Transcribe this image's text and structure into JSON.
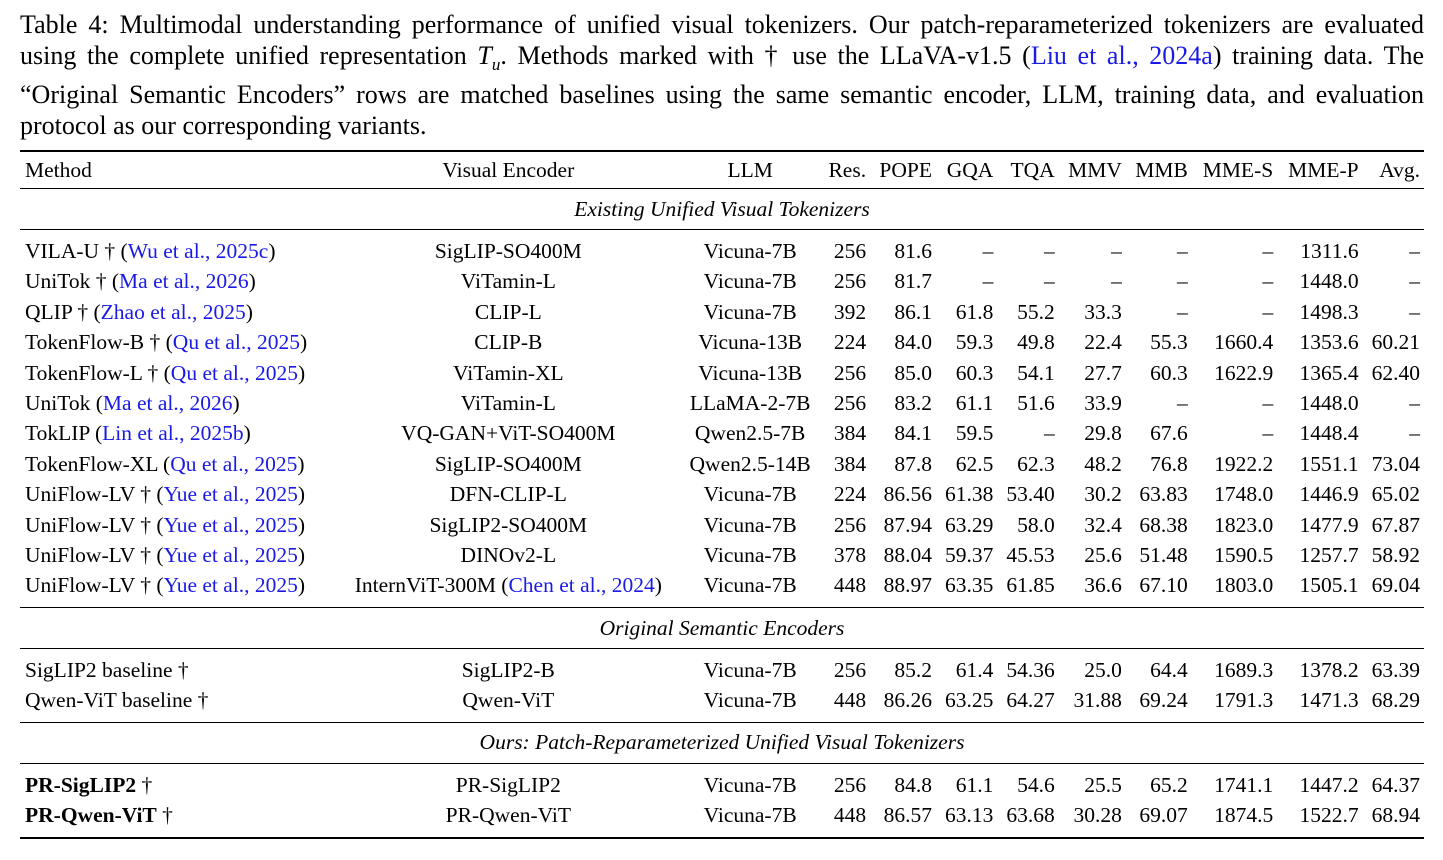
{
  "caption": {
    "prefix": "Table 4: Multimodal understanding performance of unified visual tokenizers. Our patch-reparameterized tokenizers are evaluated using the complete unified representation ",
    "math_base": "T",
    "math_sub": "u",
    "middle": ". Methods marked with † use the LLaVA-v1.5 (",
    "cite_text": "Liu et al., 2024a",
    "suffix": ") training data. The “Original Semantic Encoders” rows are matched baselines using the same semantic encoder, LLM, training data, and evaluation protocol as our corresponding variants."
  },
  "table": {
    "headers": [
      "Method",
      "Visual Encoder",
      "LLM",
      "Res.",
      "POPE",
      "GQA",
      "TQA",
      "MMV",
      "MMB",
      "MME-S",
      "MME-P",
      "Avg."
    ],
    "sections": [
      {
        "title": "Existing Unified Visual Tokenizers",
        "rows": [
          {
            "method": "VILA-U † (",
            "cite": "Wu et al., 2025c",
            "close": ")",
            "encoder": "SigLIP-SO400M",
            "llm": "Vicuna-7B",
            "vals": [
              "256",
              "81.6",
              "–",
              "–",
              "–",
              "–",
              "–",
              "1311.6",
              "–"
            ]
          },
          {
            "method": "UniTok † (",
            "cite": "Ma et al., 2026",
            "close": ")",
            "encoder": "ViTamin-L",
            "llm": "Vicuna-7B",
            "vals": [
              "256",
              "81.7",
              "–",
              "–",
              "–",
              "–",
              "–",
              "1448.0",
              "–"
            ]
          },
          {
            "method": "QLIP † (",
            "cite": "Zhao et al., 2025",
            "close": ")",
            "encoder": "CLIP-L",
            "llm": "Vicuna-7B",
            "vals": [
              "392",
              "86.1",
              "61.8",
              "55.2",
              "33.3",
              "–",
              "–",
              "1498.3",
              "–"
            ]
          },
          {
            "method": "TokenFlow-B † (",
            "cite": "Qu et al., 2025",
            "close": ")",
            "encoder": "CLIP-B",
            "llm": "Vicuna-13B",
            "vals": [
              "224",
              "84.0",
              "59.3",
              "49.8",
              "22.4",
              "55.3",
              "1660.4",
              "1353.6",
              "60.21"
            ]
          },
          {
            "method": "TokenFlow-L † (",
            "cite": "Qu et al., 2025",
            "close": ")",
            "encoder": "ViTamin-XL",
            "llm": "Vicuna-13B",
            "vals": [
              "256",
              "85.0",
              "60.3",
              "54.1",
              "27.7",
              "60.3",
              "1622.9",
              "1365.4",
              "62.40"
            ]
          },
          {
            "method": "UniTok (",
            "cite": "Ma et al., 2026",
            "close": ")",
            "encoder": "ViTamin-L",
            "llm": "LLaMA-2-7B",
            "vals": [
              "256",
              "83.2",
              "61.1",
              "51.6",
              "33.9",
              "–",
              "–",
              "1448.0",
              "–"
            ]
          },
          {
            "method": "TokLIP (",
            "cite": "Lin et al., 2025b",
            "close": ")",
            "encoder": "VQ-GAN+ViT-SO400M",
            "llm": "Qwen2.5-7B",
            "vals": [
              "384",
              "84.1",
              "59.5",
              "–",
              "29.8",
              "67.6",
              "–",
              "1448.4",
              "–"
            ]
          },
          {
            "method": "TokenFlow-XL (",
            "cite": "Qu et al., 2025",
            "close": ")",
            "encoder": "SigLIP-SO400M",
            "llm": "Qwen2.5-14B",
            "vals": [
              "384",
              "87.8",
              "62.5",
              "62.3",
              "48.2",
              "76.8",
              "1922.2",
              "1551.1",
              "73.04"
            ]
          },
          {
            "method": "UniFlow-LV † (",
            "cite": "Yue et al., 2025",
            "close": ")",
            "encoder": "DFN-CLIP-L",
            "llm": "Vicuna-7B",
            "vals": [
              "224",
              "86.56",
              "61.38",
              "53.40",
              "30.2",
              "63.83",
              "1748.0",
              "1446.9",
              "65.02"
            ]
          },
          {
            "method": "UniFlow-LV † (",
            "cite": "Yue et al., 2025",
            "close": ")",
            "encoder": "SigLIP2-SO400M",
            "llm": "Vicuna-7B",
            "vals": [
              "256",
              "87.94",
              "63.29",
              "58.0",
              "32.4",
              "68.38",
              "1823.0",
              "1477.9",
              "67.87"
            ]
          },
          {
            "method": "UniFlow-LV † (",
            "cite": "Yue et al., 2025",
            "close": ")",
            "encoder": "DINOv2-L",
            "llm": "Vicuna-7B",
            "vals": [
              "378",
              "88.04",
              "59.37",
              "45.53",
              "25.6",
              "51.48",
              "1590.5",
              "1257.7",
              "58.92"
            ]
          },
          {
            "method": "UniFlow-LV † (",
            "cite": "Yue et al., 2025",
            "close": ")",
            "encoder": "InternViT-300M (",
            "encoder_cite": "Chen et al., 2024",
            "encoder_close": ")",
            "llm": "Vicuna-7B",
            "vals": [
              "448",
              "88.97",
              "63.35",
              "61.85",
              "36.6",
              "67.10",
              "1803.0",
              "1505.1",
              "69.04"
            ]
          }
        ]
      },
      {
        "title": "Original Semantic Encoders",
        "rows": [
          {
            "method": "SigLIP2 baseline †",
            "encoder": "SigLIP2-B",
            "llm": "Vicuna-7B",
            "vals": [
              "256",
              "85.2",
              "61.4",
              "54.36",
              "25.0",
              "64.4",
              "1689.3",
              "1378.2",
              "63.39"
            ]
          },
          {
            "method": "Qwen-ViT baseline †",
            "encoder": "Qwen-ViT",
            "llm": "Vicuna-7B",
            "vals": [
              "448",
              "86.26",
              "63.25",
              "64.27",
              "31.88",
              "69.24",
              "1791.3",
              "1471.3",
              "68.29"
            ]
          }
        ]
      },
      {
        "title": "Ours: Patch-Reparameterized Unified Visual Tokenizers",
        "rows": [
          {
            "method_bold": "PR-SigLIP2",
            "method": " †",
            "encoder": "PR-SigLIP2",
            "llm": "Vicuna-7B",
            "vals": [
              "256",
              "84.8",
              "61.1",
              "54.6",
              "25.5",
              "65.2",
              "1741.1",
              "1447.2",
              "64.37"
            ]
          },
          {
            "method_bold": "PR-Qwen-ViT",
            "method": " †",
            "encoder": "PR-Qwen-ViT",
            "llm": "Vicuna-7B",
            "vals": [
              "448",
              "86.57",
              "63.13",
              "63.68",
              "30.28",
              "69.07",
              "1874.5",
              "1522.7",
              "68.94"
            ]
          }
        ]
      }
    ]
  }
}
